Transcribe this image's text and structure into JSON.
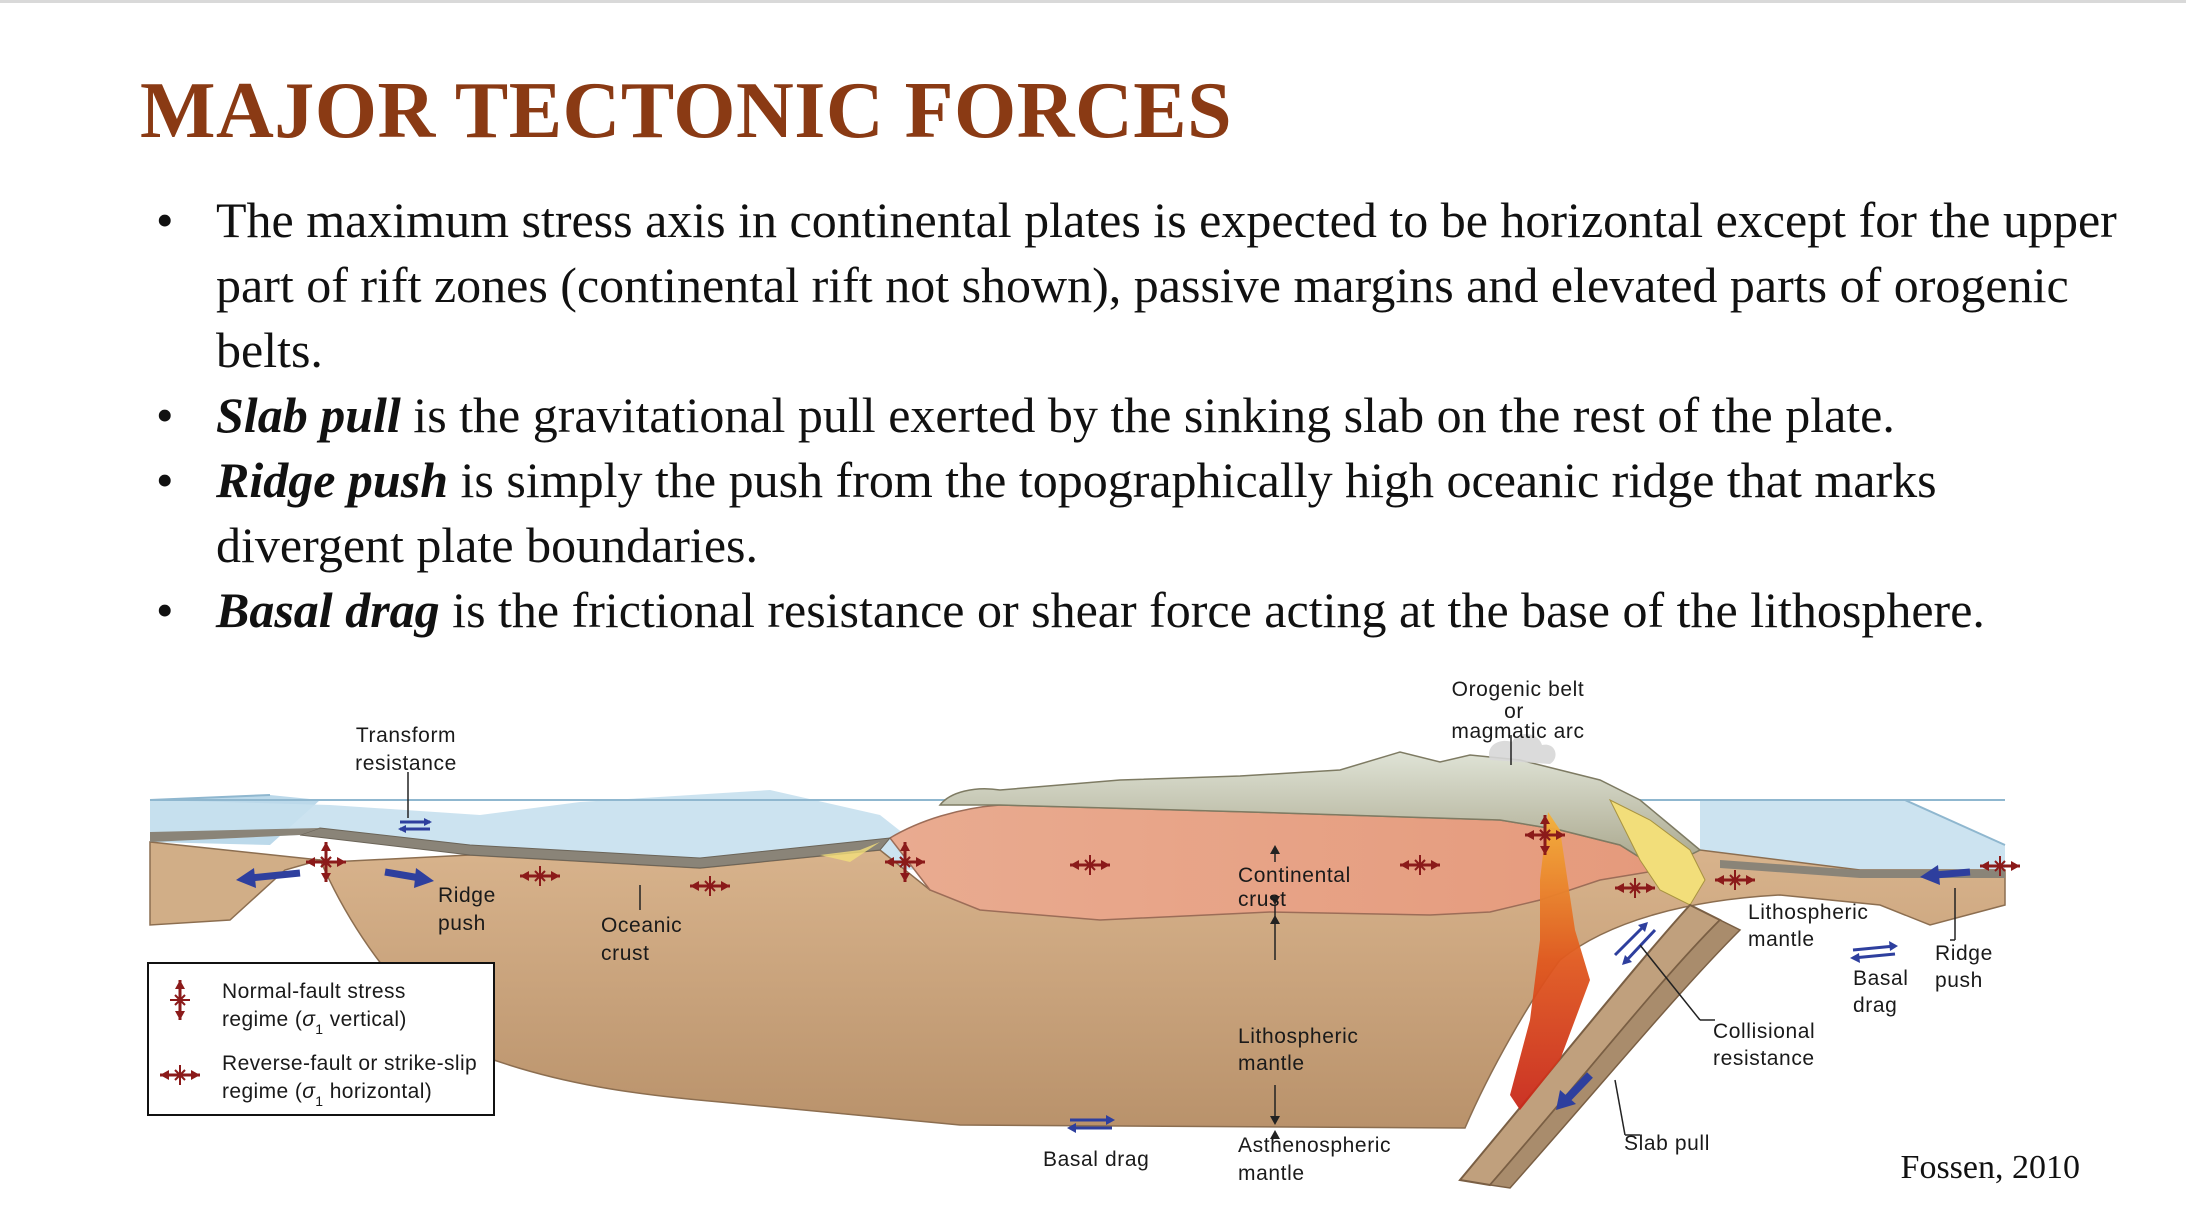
{
  "slide": {
    "title": "MAJOR TECTONIC FORCES",
    "bullets": [
      {
        "term": "",
        "text": "The maximum stress axis in continental plates is expected to be horizontal except for the upper part of rift zones (continental rift not shown), passive margins and elevated parts of orogenic belts."
      },
      {
        "term": "Slab pull",
        "text": " is the gravitational pull exerted by the sinking slab on the rest of the plate."
      },
      {
        "term": "Ridge push",
        "text": " is simply the push from the topographically high oceanic ridge that marks divergent plate boundaries."
      },
      {
        "term": "Basal drag",
        "text": " is the frictional resistance or shear force acting at the base of the lithosphere."
      }
    ]
  },
  "diagram": {
    "labels": {
      "transform_1": "Transform",
      "transform_2": "resistance",
      "ridge_push_left_1": "Ridge",
      "ridge_push_left_2": "push",
      "oceanic_crust_1": "Oceanic",
      "oceanic_crust_2": "crust",
      "orogenic_1": "Orogenic belt",
      "orogenic_2": "or",
      "orogenic_3": "magmatic arc",
      "continental_crust_1": "Continental",
      "continental_crust_2": "crust",
      "lith_mantle_center_1": "Lithospheric",
      "lith_mantle_center_2": "mantle",
      "astheno_1": "Asthenospheric",
      "astheno_2": "mantle",
      "basal_drag_center": "Basal drag",
      "lith_mantle_right_1": "Lithospheric",
      "lith_mantle_right_2": "mantle",
      "basal_drag_right_1": "Basal",
      "basal_drag_right_2": "drag",
      "ridge_push_right_1": "Ridge",
      "ridge_push_right_2": "push",
      "collisional_1": "Collisional",
      "collisional_2": "resistance",
      "slab_pull": "Slab pull"
    },
    "legend": {
      "normal_1": "Normal-fault stress",
      "normal_2a": "regime (",
      "normal_2b": "1",
      "normal_2c": " vertical)",
      "reverse_1": "Reverse-fault or strike-slip",
      "reverse_2a": "regime (",
      "reverse_2b": "1",
      "reverse_2c": " horizontal)"
    },
    "credit": "Fossen, 2010",
    "colors": {
      "title": "#8a3a14",
      "ocean": "#bcd9ea",
      "mantle": "#c9a57f",
      "continental_crust": "#e8a489",
      "arrow": "#2e3f9e",
      "stress_symbol": "#8b1a1a"
    }
  }
}
